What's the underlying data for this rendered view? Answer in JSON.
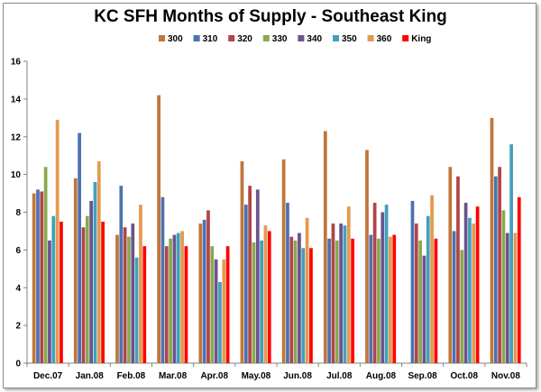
{
  "chart_data": {
    "type": "bar",
    "title": "KC SFH Months of Supply - Southeast King",
    "xlabel": "",
    "ylabel": "",
    "ylim": [
      0,
      16
    ],
    "yticks": [
      "0",
      "2",
      "4",
      "6",
      "8",
      "10",
      "12",
      "14",
      "16"
    ],
    "grid": false,
    "legend_position": "top",
    "categories": [
      "Dec.07",
      "Jan.08",
      "Feb.08",
      "Mar.08",
      "Apr.08",
      "May.08",
      "Jun.08",
      "Jul.08",
      "Aug.08",
      "Sep.08",
      "Oct.08",
      "Nov.08"
    ],
    "series": [
      {
        "name": "300",
        "color": "#c0763a",
        "values": [
          9.0,
          9.8,
          6.8,
          14.2,
          7.4,
          10.7,
          10.8,
          12.3,
          11.3,
          0,
          10.4,
          13.0
        ]
      },
      {
        "name": "310",
        "color": "#4c72b0",
        "values": [
          9.2,
          12.2,
          9.4,
          8.8,
          7.6,
          8.4,
          8.5,
          6.6,
          6.8,
          8.6,
          7.0,
          9.9
        ]
      },
      {
        "name": "320",
        "color": "#b0454a",
        "values": [
          9.1,
          7.2,
          7.2,
          6.2,
          8.1,
          9.4,
          6.7,
          7.4,
          8.5,
          7.4,
          9.9,
          10.4
        ]
      },
      {
        "name": "330",
        "color": "#8aa84e",
        "values": [
          10.4,
          7.8,
          6.7,
          6.6,
          6.2,
          6.4,
          6.5,
          6.5,
          6.6,
          6.5,
          6.0,
          8.1
        ]
      },
      {
        "name": "340",
        "color": "#6a538e",
        "values": [
          6.5,
          8.6,
          7.4,
          6.8,
          5.5,
          9.2,
          6.9,
          7.4,
          8.0,
          5.7,
          8.5,
          6.9
        ]
      },
      {
        "name": "350",
        "color": "#42a0bc",
        "values": [
          7.8,
          9.6,
          5.6,
          6.9,
          4.3,
          6.5,
          6.1,
          7.3,
          8.4,
          7.8,
          7.7,
          11.6
        ]
      },
      {
        "name": "360",
        "color": "#e39a4e",
        "values": [
          12.9,
          10.7,
          8.4,
          7.0,
          5.5,
          7.3,
          7.7,
          8.3,
          6.7,
          8.9,
          7.4,
          6.9
        ]
      },
      {
        "name": "King",
        "color": "#ff0000",
        "values": [
          7.5,
          7.5,
          6.2,
          6.2,
          6.2,
          7.0,
          6.1,
          6.6,
          6.8,
          6.6,
          8.3,
          8.8
        ]
      }
    ]
  }
}
